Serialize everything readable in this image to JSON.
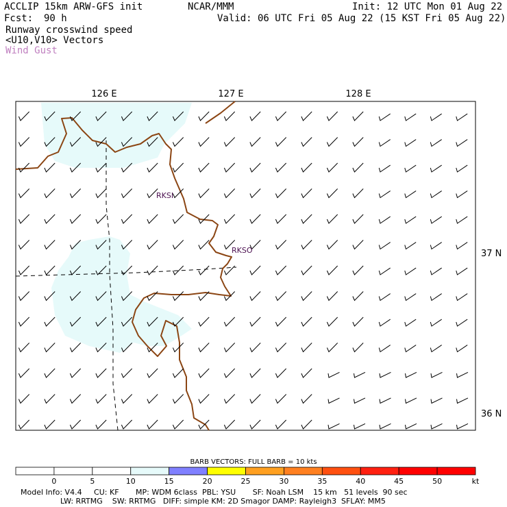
{
  "header": {
    "model": "ACCLIP 15km ARW-GFS init",
    "org": "NCAR/MMM",
    "init": "Init: 12 UTC Mon 01 Aug 22",
    "fcst_label": "Fcst:",
    "fcst_value": "90 h",
    "valid": "Valid: 06 UTC Fri 05 Aug 22 (15 KST Fri 05 Aug 22)",
    "field1": "Runway crosswind speed",
    "field2": "<U10,V10> Vectors",
    "field3": "Wind Gust"
  },
  "axes": {
    "lon_labels": [
      "126 E",
      "127 E",
      "128 E"
    ],
    "lat_labels": [
      "37 N",
      "36 N"
    ]
  },
  "stations": [
    "RKSI",
    "RKSO"
  ],
  "legend": {
    "barb_note": "BARB VECTORS:  FULL BARB = 10 kts",
    "ticks": [
      "0",
      "5",
      "10",
      "15",
      "20",
      "25",
      "30",
      "35",
      "40",
      "45",
      "50"
    ],
    "unit": "kt",
    "colors": [
      "#ffffff",
      "#ffffff",
      "#ffffff",
      "#e6fafa",
      "#8080ff",
      "#ffff00",
      "#ffa020",
      "#ff8020",
      "#ff5010",
      "#ff2010",
      "#ff0000",
      "#ff0000"
    ]
  },
  "footer": {
    "line1": "Model Info: V4.4     CU: KF       MP: WDM 6class  PBL: YSU       SF: Noah LSM    15 km   51 levels  90 sec",
    "line2": "LW: RRTMG    SW: RRTMG   DIFF: simple KM: 2D Smagor DAMP: Rayleigh3  SFLAY: MM5"
  },
  "colors": {
    "coast": "#8b4513",
    "station": "#4b1050",
    "gust": "#c080c0",
    "light_fill": "#e6fafa"
  }
}
